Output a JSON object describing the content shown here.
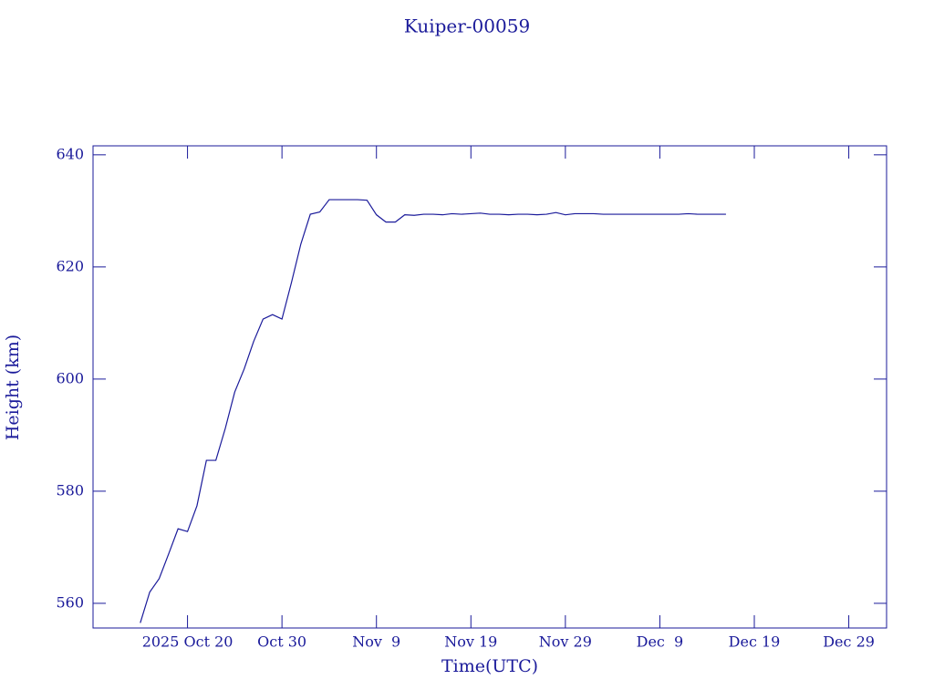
{
  "chart_data": {
    "type": "line",
    "title": "Kuiper-00059",
    "xlabel": "Time(UTC)",
    "ylabel": "Height (km)",
    "color": "#1a1a9a",
    "x": [
      "2025-10-15",
      "2025-10-16",
      "2025-10-17",
      "2025-10-18",
      "2025-10-19",
      "2025-10-20",
      "2025-10-21",
      "2025-10-22",
      "2025-10-23",
      "2025-10-24",
      "2025-10-25",
      "2025-10-26",
      "2025-10-27",
      "2025-10-28",
      "2025-10-29",
      "2025-10-30",
      "2025-10-31",
      "2025-11-01",
      "2025-11-02",
      "2025-11-03",
      "2025-11-04",
      "2025-11-05",
      "2025-11-06",
      "2025-11-07",
      "2025-11-08",
      "2025-11-09",
      "2025-11-10",
      "2025-11-11",
      "2025-11-12",
      "2025-11-13",
      "2025-11-14",
      "2025-11-15",
      "2025-11-16",
      "2025-11-17",
      "2025-11-18",
      "2025-11-19",
      "2025-11-20",
      "2025-11-21",
      "2025-11-22",
      "2025-11-23",
      "2025-11-24",
      "2025-11-25",
      "2025-11-26",
      "2025-11-27",
      "2025-11-28",
      "2025-11-29",
      "2025-11-30",
      "2025-12-01",
      "2025-12-02",
      "2025-12-03",
      "2025-12-04",
      "2025-12-05",
      "2025-12-06",
      "2025-12-07",
      "2025-12-08",
      "2025-12-09",
      "2025-12-10",
      "2025-12-11",
      "2025-12-12",
      "2025-12-13",
      "2025-12-14",
      "2025-12-15",
      "2025-12-16"
    ],
    "values": [
      556.5,
      562,
      564.4,
      568.8,
      573.3,
      572.8,
      577.4,
      585.5,
      585.5,
      591.2,
      597.7,
      601.8,
      606.7,
      610.7,
      611.5,
      610.7,
      617.2,
      624.1,
      629.4,
      629.8,
      632.0,
      632.0,
      632.0,
      632.0,
      631.9,
      629.3,
      628.0,
      628.0,
      629.3,
      629.2,
      629.4,
      629.4,
      629.3,
      629.5,
      629.4,
      629.5,
      629.6,
      629.4,
      629.4,
      629.3,
      629.4,
      629.4,
      629.3,
      629.4,
      629.7,
      629.3,
      629.5,
      629.5,
      629.5,
      629.4,
      629.4,
      629.4,
      629.4,
      629.4,
      629.4,
      629.4,
      629.4,
      629.4,
      629.5,
      629.4,
      629.4,
      629.4,
      629.4
    ],
    "xlim": [
      "2025-10-10",
      "2026-01-02"
    ],
    "xticks": [
      {
        "value": "2025-10-20",
        "label": "2025 Oct 20"
      },
      {
        "value": "2025-10-30",
        "label": "Oct 30"
      },
      {
        "value": "2025-11-09",
        "label": "Nov  9"
      },
      {
        "value": "2025-11-19",
        "label": "Nov 19"
      },
      {
        "value": "2025-11-29",
        "label": "Nov 29"
      },
      {
        "value": "2025-12-09",
        "label": "Dec  9"
      },
      {
        "value": "2025-12-19",
        "label": "Dec 19"
      },
      {
        "value": "2025-12-29",
        "label": "Dec 29"
      }
    ],
    "ylim": [
      555.6,
      641.6
    ],
    "yticks": [
      560,
      580,
      600,
      620,
      640
    ]
  }
}
